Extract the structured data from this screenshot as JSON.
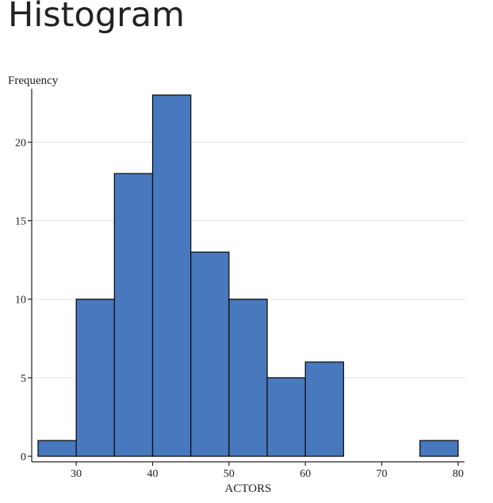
{
  "page": {
    "title": "Histogram"
  },
  "chart_data": {
    "type": "bar",
    "subtype": "histogram",
    "xlabel": "ACTORS",
    "ylabel": "Frequency",
    "xlim": [
      25,
      80
    ],
    "ylim": [
      0,
      23
    ],
    "grid": true,
    "xticks": [
      30,
      40,
      50,
      60,
      70,
      80
    ],
    "yticks": [
      0,
      5,
      10,
      15,
      20
    ],
    "bins": [
      {
        "start": 25,
        "end": 30,
        "count": 1
      },
      {
        "start": 30,
        "end": 35,
        "count": 10
      },
      {
        "start": 35,
        "end": 40,
        "count": 18
      },
      {
        "start": 40,
        "end": 45,
        "count": 23
      },
      {
        "start": 45,
        "end": 50,
        "count": 13
      },
      {
        "start": 50,
        "end": 55,
        "count": 10
      },
      {
        "start": 55,
        "end": 60,
        "count": 5
      },
      {
        "start": 60,
        "end": 65,
        "count": 6
      },
      {
        "start": 65,
        "end": 70,
        "count": 0
      },
      {
        "start": 70,
        "end": 75,
        "count": 0
      },
      {
        "start": 75,
        "end": 80,
        "count": 1
      }
    ],
    "bar_color": "#4878be"
  }
}
